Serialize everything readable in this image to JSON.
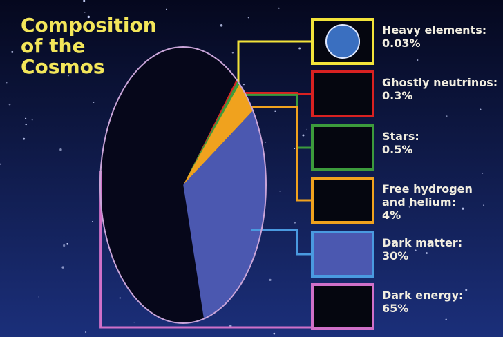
{
  "chart_data": {
    "type": "pie",
    "title": "Composition of the Cosmos",
    "categories": [
      "Heavy elements:",
      "Ghostly neutrinos:",
      "Stars:",
      "Free hydrogen and helium:",
      "Dark matter:",
      "Dark energy:"
    ],
    "values": [
      0.03,
      0.3,
      0.5,
      4,
      30,
      65
    ],
    "value_labels": [
      "0.03%",
      "0.3%",
      "0.5%",
      "4%",
      "30%",
      "65%"
    ],
    "colors": [
      "#f2e33a",
      "#d92121",
      "#3c9b3c",
      "#f0a21e",
      "#4b58b0",
      "#06071a"
    ],
    "box_colors": [
      "#f2e33a",
      "#d92121",
      "#3c9b3c",
      "#f0a21e",
      "#4a9ae0",
      "#d070c8"
    ]
  }
}
